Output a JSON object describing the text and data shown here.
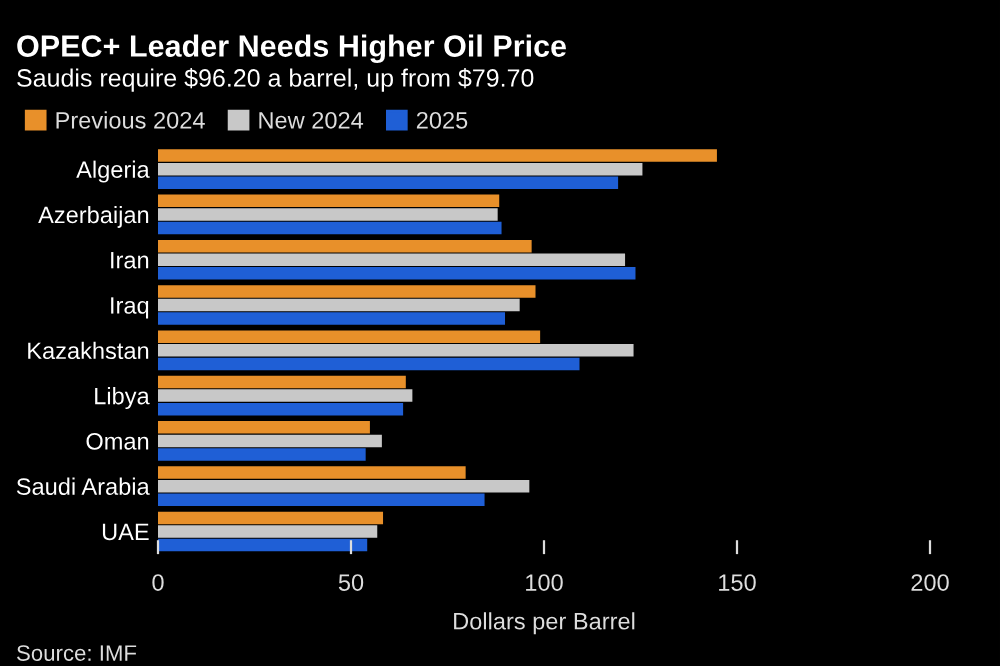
{
  "chart_data": {
    "type": "bar",
    "orientation": "horizontal",
    "title": "OPEC+ Leader Needs Higher Oil Price",
    "subtitle": "Saudis require $96.20 a barrel, up from $79.70",
    "xlabel": "Dollars per Barrel",
    "categories": [
      "Algeria",
      "Azerbaijan",
      "Iran",
      "Iraq",
      "Kazakhstan",
      "Libya",
      "Oman",
      "Saudi Arabia",
      "UAE"
    ],
    "series": [
      {
        "name": "Previous 2024",
        "color": "#e8902a",
        "values": [
          144.8,
          88.4,
          96.8,
          97.8,
          99,
          64.2,
          54.9,
          79.7,
          58.3
        ]
      },
      {
        "name": "New 2024",
        "color": "#c8c8c8",
        "values": [
          125.5,
          88,
          121,
          93.7,
          123.2,
          65.9,
          58,
          96.2,
          56.8
        ]
      },
      {
        "name": "2025",
        "color": "#1f5fd6",
        "values": [
          119.2,
          89,
          123.7,
          89.9,
          109.2,
          63.5,
          53.8,
          84.6,
          54.2
        ]
      }
    ],
    "xlim": [
      0,
      200
    ],
    "xticks": [
      0,
      50,
      100,
      150,
      200
    ],
    "grid": false,
    "legend": "top left",
    "annotations": [
      "Source: IMF"
    ]
  }
}
